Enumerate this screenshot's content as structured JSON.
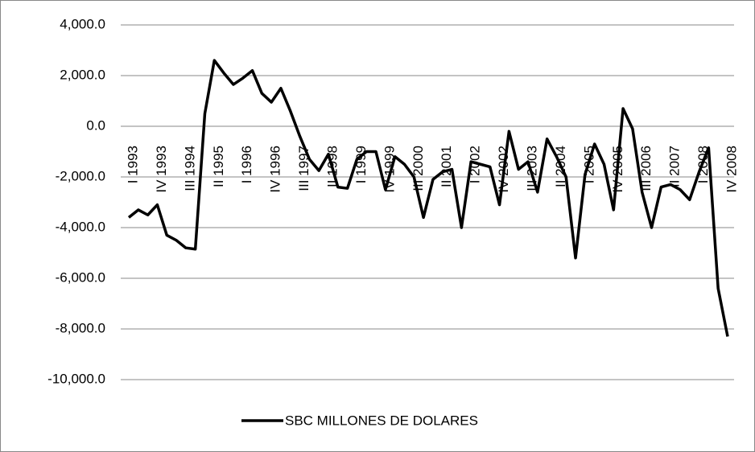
{
  "chart_data": {
    "type": "line",
    "categories": [
      "I 1993",
      null,
      null,
      "IV 1993",
      null,
      null,
      "III  1994",
      null,
      null,
      "II 1995",
      null,
      null,
      "I 1996",
      null,
      null,
      "IV 1996",
      null,
      null,
      "III  1997",
      null,
      null,
      "II 1998",
      null,
      null,
      "I 1999",
      null,
      null,
      "IV 1999",
      null,
      null,
      "III 2000",
      null,
      null,
      "II 2001",
      null,
      null,
      "I 2002",
      null,
      null,
      "IV 2002",
      null,
      null,
      "III 2003",
      null,
      null,
      "II 2004",
      null,
      null,
      "I 2005",
      null,
      null,
      "IV 2005",
      null,
      null,
      "III 2006",
      null,
      null,
      "II 2007",
      null,
      null,
      "I 2008",
      null,
      null,
      "IV 2008"
    ],
    "series": [
      {
        "name": "SBC  MILLONES DE DOLARES",
        "color": "#000000",
        "values": [
          -3600,
          -3300,
          -3500,
          -3100,
          -4300,
          -4500,
          -4800,
          -4850,
          500,
          2600,
          2100,
          1650,
          1900,
          2200,
          1300,
          950,
          1500,
          600,
          -400,
          -1300,
          -1750,
          -1100,
          -2400,
          -2450,
          -1300,
          -1000,
          -1000,
          -2500,
          -1200,
          -1500,
          -2000,
          -3600,
          -2100,
          -1800,
          -1700,
          -4000,
          -1400,
          -1500,
          -1600,
          -3100,
          -200,
          -1700,
          -1400,
          -2600,
          -500,
          -1200,
          -2000,
          -5200,
          -1900,
          -700,
          -1500,
          -3300,
          700,
          -100,
          -2600,
          -4000,
          -2400,
          -2300,
          -2500,
          -2900,
          -1800,
          -850,
          -6400,
          -8300
        ]
      }
    ],
    "ylim": [
      -10000,
      4000
    ],
    "yticks": [
      {
        "value": -10000,
        "label": "-10,000.0"
      },
      {
        "value": -8000,
        "label": "-8,000.0"
      },
      {
        "value": -6000,
        "label": "-6,000.0"
      },
      {
        "value": -4000,
        "label": "-4,000.0"
      },
      {
        "value": -2000,
        "label": "-2,000.0"
      },
      {
        "value": 0,
        "label": "0.0"
      },
      {
        "value": 2000,
        "label": "2,000.0"
      },
      {
        "value": 4000,
        "label": "4,000.0"
      }
    ],
    "grid": true,
    "legend": "bottom"
  }
}
